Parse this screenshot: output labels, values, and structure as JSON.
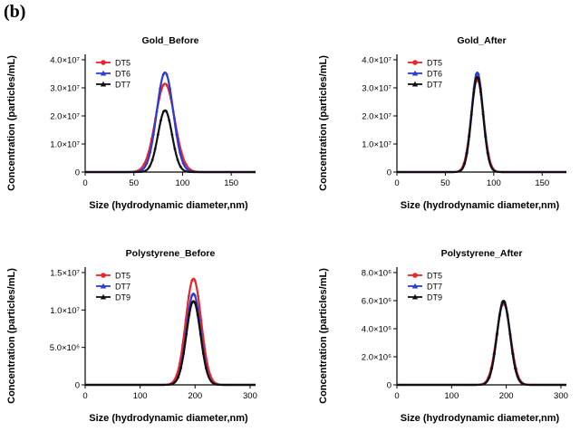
{
  "figure": {
    "panel_label": "(b)"
  },
  "colors": {
    "DT5": "#e8262b",
    "DT6": "#2b3bd4",
    "DT7_blue": "#2b3bd4",
    "DT7_black": "#111111",
    "DT9": "#111111"
  },
  "chart_data": [
    {
      "type": "line",
      "title": "Gold_Before",
      "xlabel": "Size (hydrodynamic diameter,nm)",
      "ylabel": "Concentration (particles/mL)",
      "xlim": [
        0,
        175
      ],
      "ylim": [
        0,
        40000000
      ],
      "xticks": [
        0,
        50,
        100,
        150
      ],
      "yticks": [
        0,
        10000000,
        20000000,
        30000000,
        40000000
      ],
      "ytick_labels": [
        "0",
        "1.0×10⁷",
        "2.0×10⁷",
        "3.0×10⁷",
        "4.0×10⁷"
      ],
      "legend_position": "top-left",
      "grid": false,
      "series": [
        {
          "name": "DT5",
          "color": "#e8262b",
          "marker": "circle",
          "peak_x": 82,
          "peak_y": 31500000,
          "fwhm": 23
        },
        {
          "name": "DT6",
          "color": "#2b3bd4",
          "marker": "triangle",
          "peak_x": 82,
          "peak_y": 35500000,
          "fwhm": 20
        },
        {
          "name": "DT7",
          "color": "#111111",
          "marker": "triangle",
          "peak_x": 82,
          "peak_y": 22000000,
          "fwhm": 17
        }
      ]
    },
    {
      "type": "line",
      "title": "Gold_After",
      "xlabel": "Size (hydrodynamic diameter,nm)",
      "ylabel": "Concentration (particles/mL)",
      "xlim": [
        0,
        175
      ],
      "ylim": [
        0,
        40000000
      ],
      "xticks": [
        0,
        50,
        100,
        150
      ],
      "yticks": [
        0,
        10000000,
        20000000,
        30000000,
        40000000
      ],
      "ytick_labels": [
        "0",
        "1.0×10⁷",
        "2.0×10⁷",
        "3.0×10⁷",
        "4.0×10⁷"
      ],
      "legend_position": "top-left",
      "grid": false,
      "series": [
        {
          "name": "DT5",
          "color": "#e8262b",
          "marker": "circle",
          "peak_x": 83,
          "peak_y": 33000000,
          "fwhm": 15
        },
        {
          "name": "DT6",
          "color": "#2b3bd4",
          "marker": "triangle",
          "peak_x": 83,
          "peak_y": 35500000,
          "fwhm": 14
        },
        {
          "name": "DT7",
          "color": "#111111",
          "marker": "triangle",
          "peak_x": 83,
          "peak_y": 34000000,
          "fwhm": 14
        }
      ]
    },
    {
      "type": "line",
      "title": "Polystyrene_Before",
      "xlabel": "Size (hydrodynamic diameter,nm)",
      "ylabel": "Concentration (particles/mL)",
      "xlim": [
        0,
        310
      ],
      "ylim": [
        0,
        15000000
      ],
      "xticks": [
        0,
        100,
        200,
        300
      ],
      "yticks": [
        0,
        5000000,
        10000000,
        15000000
      ],
      "ytick_labels": [
        "0",
        "5.0×10⁶",
        "1.0×10⁷",
        "1.5×10⁷"
      ],
      "legend_position": "top-left",
      "grid": false,
      "series": [
        {
          "name": "DT5",
          "color": "#e8262b",
          "marker": "circle",
          "peak_x": 197,
          "peak_y": 14200000,
          "fwhm": 33
        },
        {
          "name": "DT7",
          "color": "#2b3bd4",
          "marker": "triangle",
          "peak_x": 197,
          "peak_y": 12200000,
          "fwhm": 30
        },
        {
          "name": "DT9",
          "color": "#111111",
          "marker": "triangle",
          "peak_x": 197,
          "peak_y": 11200000,
          "fwhm": 30
        }
      ]
    },
    {
      "type": "line",
      "title": "Polystyrene_After",
      "xlabel": "Size (hydrodynamic diameter,nm)",
      "ylabel": "Concentration (particles/mL)",
      "xlim": [
        0,
        310
      ],
      "ylim": [
        0,
        8000000
      ],
      "xticks": [
        0,
        100,
        200,
        300
      ],
      "yticks": [
        0,
        2000000,
        4000000,
        6000000,
        8000000
      ],
      "ytick_labels": [
        "0",
        "2.0×10⁶",
        "4.0×10⁶",
        "6.0×10⁶",
        "8.0×10⁶"
      ],
      "legend_position": "top-left",
      "grid": false,
      "series": [
        {
          "name": "DT5",
          "color": "#e8262b",
          "marker": "circle",
          "peak_x": 195,
          "peak_y": 5800000,
          "fwhm": 30
        },
        {
          "name": "DT7",
          "color": "#2b3bd4",
          "marker": "triangle",
          "peak_x": 195,
          "peak_y": 5900000,
          "fwhm": 28
        },
        {
          "name": "DT9",
          "color": "#111111",
          "marker": "triangle",
          "peak_x": 195,
          "peak_y": 6000000,
          "fwhm": 28
        }
      ]
    }
  ]
}
